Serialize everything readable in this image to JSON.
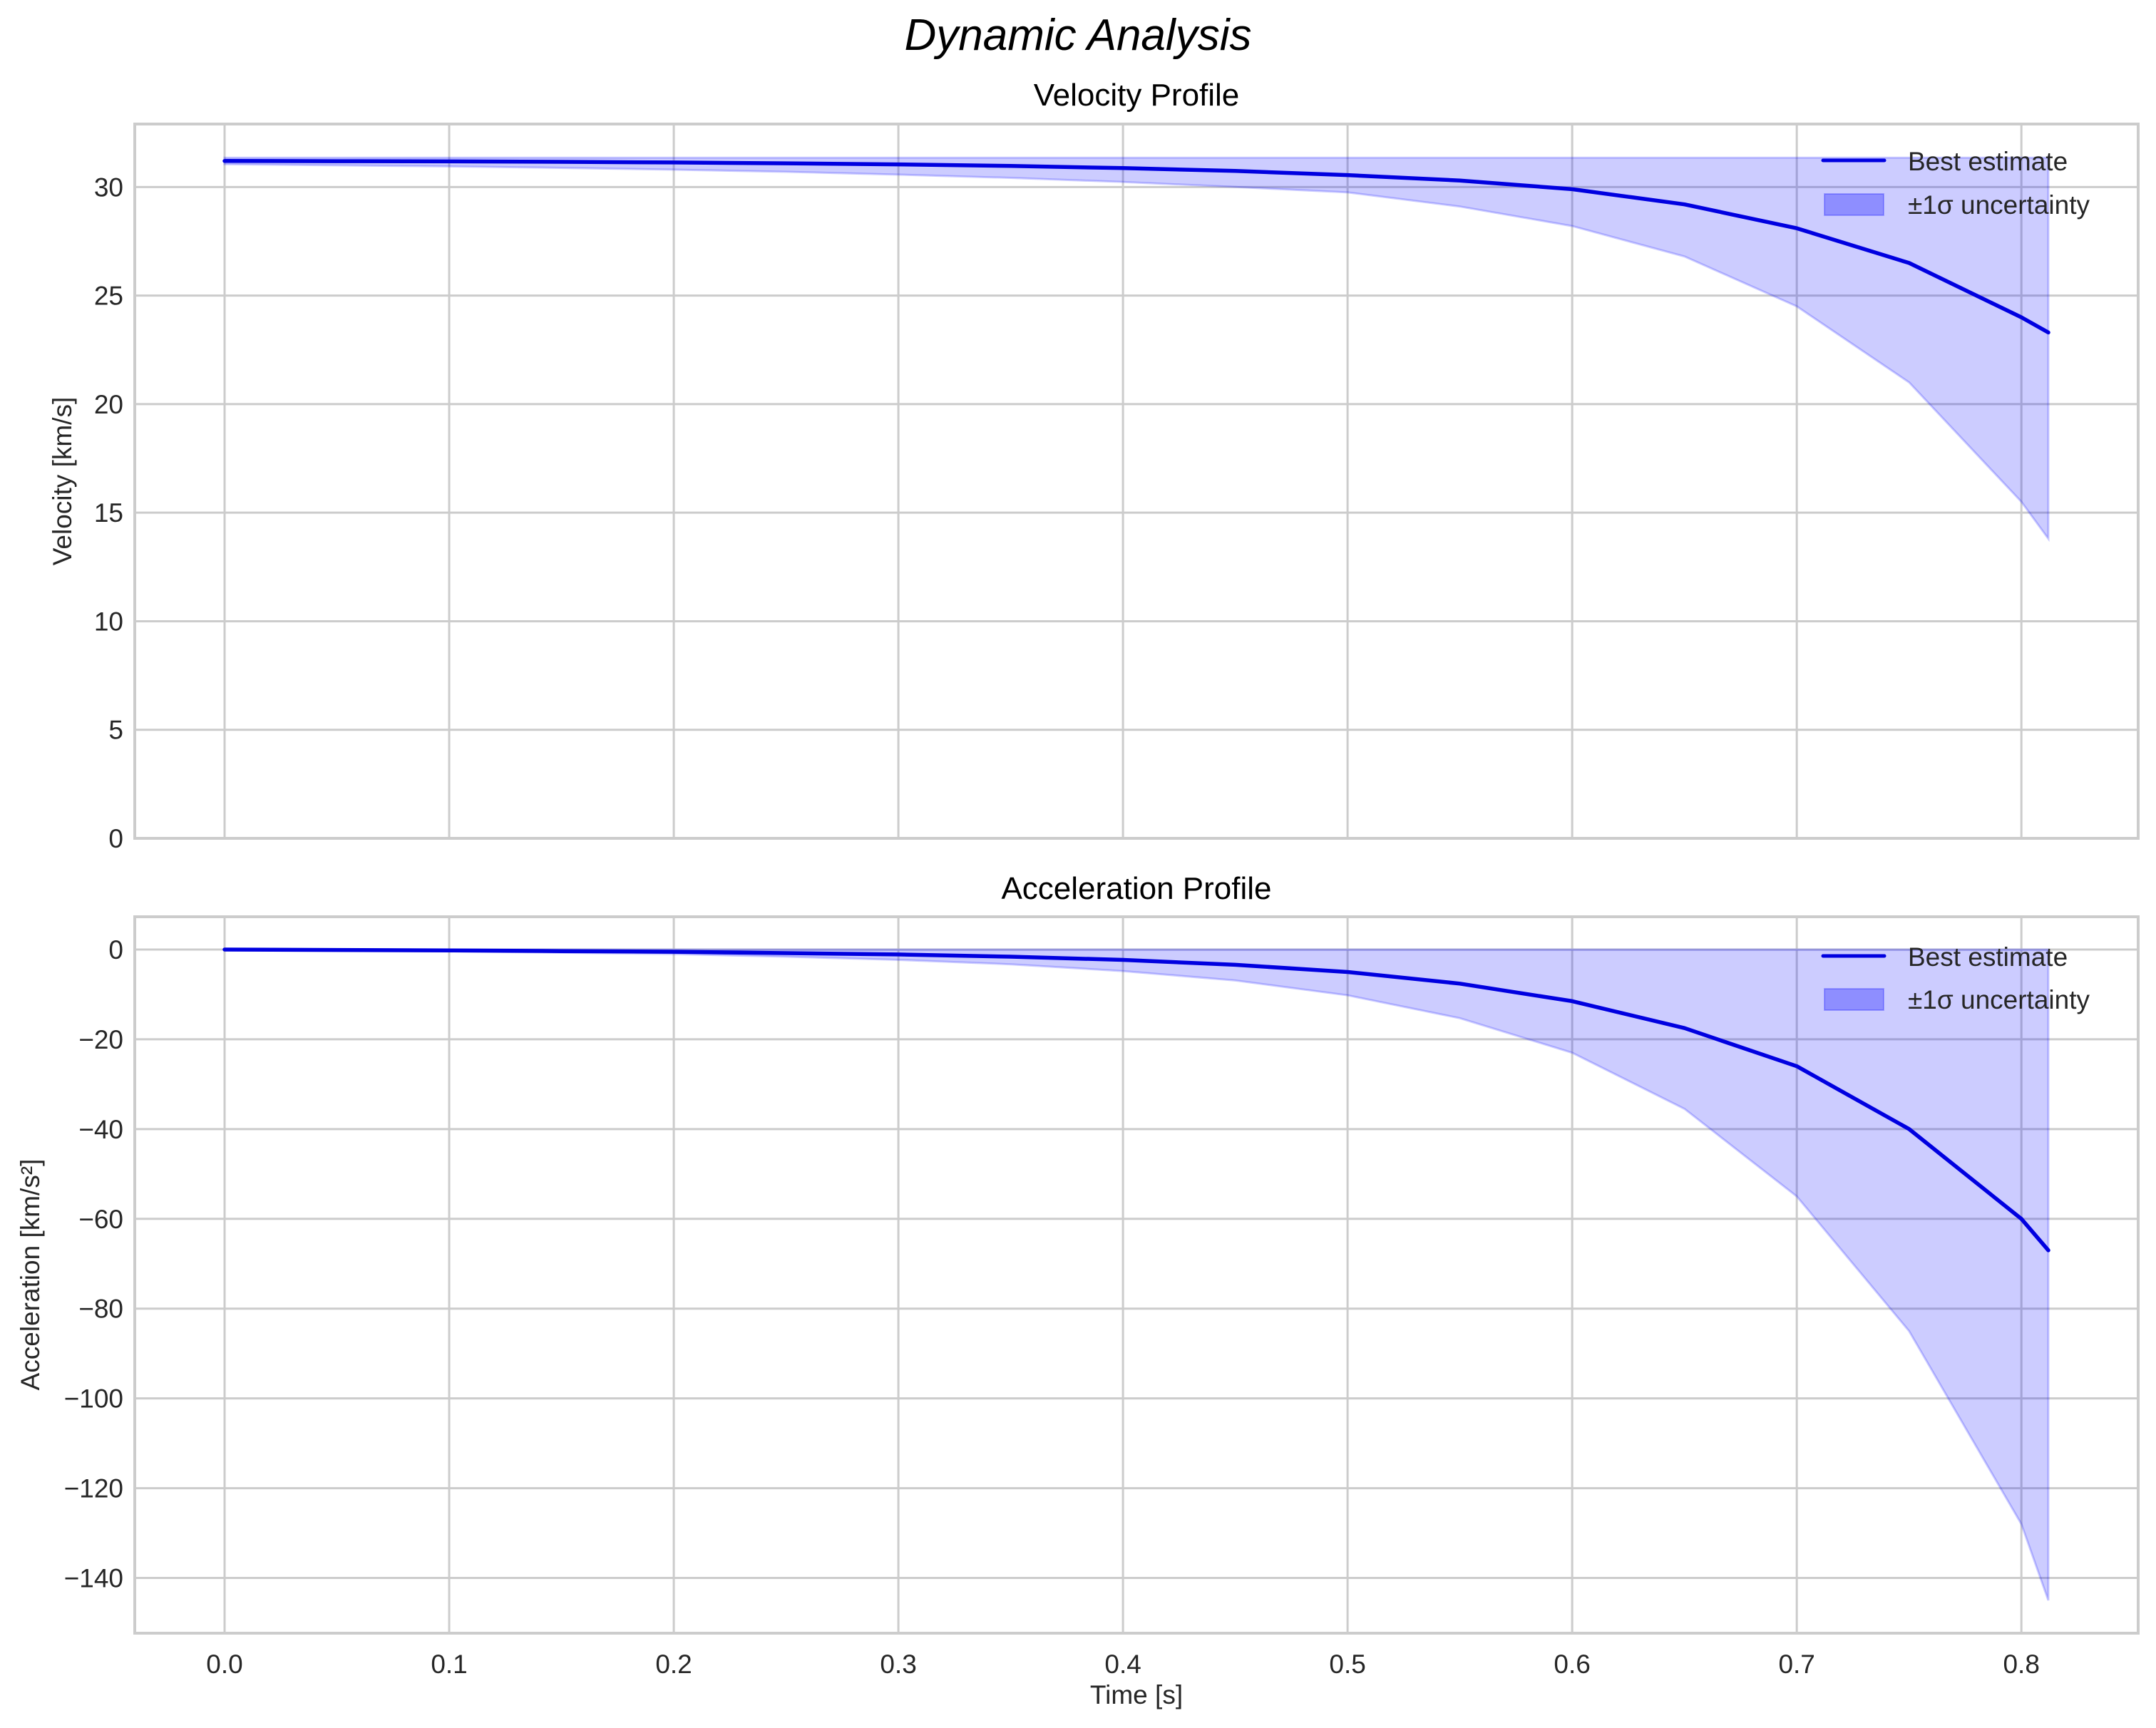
{
  "figure": {
    "suptitle": "Dynamic Analysis",
    "colors": {
      "line": "#0000e0",
      "band_fill": "#0000ff",
      "band_alpha": 0.2,
      "grid": "#cccccc",
      "frame": "#cccccc",
      "text": "#262626"
    }
  },
  "chart_data": [
    {
      "type": "line",
      "title": "Velocity Profile",
      "xlabel": "",
      "ylabel": "Velocity [km/s]",
      "xlim": [
        -0.04,
        0.852
      ],
      "ylim": [
        0,
        32.9
      ],
      "xticks": [
        "0.0",
        "0.1",
        "0.2",
        "0.3",
        "0.4",
        "0.5",
        "0.6",
        "0.7",
        "0.8"
      ],
      "yticks": [
        "0",
        "5",
        "10",
        "15",
        "20",
        "25",
        "30"
      ],
      "grid": true,
      "legend": {
        "position": "upper right",
        "entries": [
          "Best estimate",
          "±1σ uncertainty"
        ]
      },
      "x": [
        0.0,
        0.05,
        0.1,
        0.15,
        0.2,
        0.25,
        0.3,
        0.35,
        0.4,
        0.45,
        0.5,
        0.55,
        0.6,
        0.65,
        0.7,
        0.75,
        0.8,
        0.812
      ],
      "series": [
        {
          "name": "Best estimate",
          "values": [
            31.2,
            31.19,
            31.18,
            31.16,
            31.13,
            31.09,
            31.04,
            30.97,
            30.87,
            30.74,
            30.55,
            30.3,
            29.9,
            29.2,
            28.1,
            26.5,
            24.0,
            23.3
          ]
        },
        {
          "name": "±1σ uncertainty (lower)",
          "values": [
            31.05,
            31.0,
            30.95,
            30.88,
            30.8,
            30.7,
            30.57,
            30.42,
            30.23,
            30.0,
            29.75,
            29.1,
            28.2,
            26.8,
            24.5,
            21.0,
            15.5,
            13.8
          ]
        },
        {
          "name": "±1σ uncertainty (upper)",
          "values": [
            31.35,
            31.35,
            31.35,
            31.35,
            31.35,
            31.35,
            31.35,
            31.35,
            31.35,
            31.35,
            31.35,
            31.35,
            31.35,
            31.35,
            31.35,
            31.35,
            31.35,
            31.35
          ]
        }
      ]
    },
    {
      "type": "line",
      "title": "Acceleration Profile",
      "xlabel": "Time [s]",
      "ylabel": "Acceleration [km/s²]",
      "xlim": [
        -0.04,
        0.852
      ],
      "ylim": [
        -152.3,
        7.3
      ],
      "xticks": [
        "0.0",
        "0.1",
        "0.2",
        "0.3",
        "0.4",
        "0.5",
        "0.6",
        "0.7",
        "0.8"
      ],
      "yticks": [
        "0",
        "−20",
        "−40",
        "−60",
        "−80",
        "−100",
        "−120",
        "−140"
      ],
      "grid": true,
      "legend": {
        "position": "upper right",
        "entries": [
          "Best estimate",
          "±1σ uncertainty"
        ]
      },
      "x": [
        0.0,
        0.05,
        0.1,
        0.15,
        0.2,
        0.25,
        0.3,
        0.35,
        0.4,
        0.45,
        0.5,
        0.55,
        0.6,
        0.65,
        0.7,
        0.75,
        0.8,
        0.812
      ],
      "series": [
        {
          "name": "Best estimate",
          "values": [
            0.0,
            -0.1,
            -0.2,
            -0.35,
            -0.5,
            -0.8,
            -1.1,
            -1.6,
            -2.3,
            -3.4,
            -5.0,
            -7.6,
            -11.5,
            -17.5,
            -26.0,
            -40.0,
            -60.0,
            -67.0
          ]
        },
        {
          "name": "±1σ uncertainty (lower)",
          "values": [
            0.0,
            -0.2,
            -0.4,
            -0.7,
            -1.0,
            -1.6,
            -2.3,
            -3.3,
            -4.8,
            -6.9,
            -10.2,
            -15.3,
            -23.0,
            -35.5,
            -55.0,
            -85.0,
            -128.0,
            -145.0
          ]
        },
        {
          "name": "±1σ uncertainty (upper)",
          "values": [
            0.0,
            0.0,
            0.0,
            0.0,
            0.0,
            0.0,
            0.0,
            0.0,
            0.0,
            0.0,
            0.0,
            0.0,
            0.0,
            0.0,
            0.0,
            0.0,
            0.0,
            0.0
          ]
        }
      ]
    }
  ]
}
